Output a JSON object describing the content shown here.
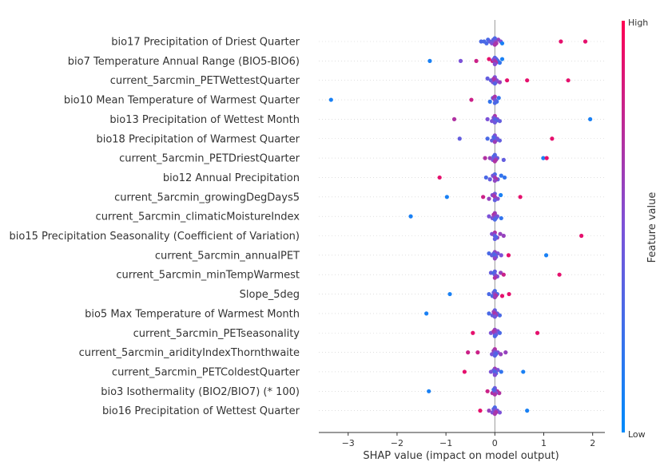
{
  "chart_data": {
    "type": "scatter",
    "subtype": "shap-beeswarm",
    "xlabel": "SHAP value (impact on model output)",
    "xlim": [
      -3.6,
      2.25
    ],
    "xticks": [
      -3,
      -2,
      -1,
      0,
      1,
      2
    ],
    "xtick_labels": [
      "−3",
      "−2",
      "−1",
      "0",
      "1",
      "2"
    ],
    "colorbar": {
      "label": "Feature value",
      "high": "High",
      "low": "Low",
      "low_color": "#008bfb",
      "high_color": "#ff0052"
    },
    "grid": false,
    "features": [
      {
        "name": "bio17 Precipitation of Driest Quarter",
        "points": [
          [
            -0.28,
            0.3
          ],
          [
            -0.22,
            0.3
          ],
          [
            -0.17,
            0.3
          ],
          [
            -0.14,
            0.3
          ],
          [
            -0.1,
            0.4
          ],
          [
            -0.06,
            0.5
          ],
          [
            -0.03,
            0.5
          ],
          [
            0,
            0.6
          ],
          [
            0.03,
            0.7
          ],
          [
            0.07,
            0.6
          ],
          [
            0.12,
            0.5
          ],
          [
            0.15,
            0.1
          ],
          [
            1.35,
            0.9
          ],
          [
            1.85,
            0.9
          ]
        ]
      },
      {
        "name": "bio7 Temperature Annual Range (BIO5-BIO6)",
        "points": [
          [
            -1.33,
            0.1
          ],
          [
            -0.7,
            0.5
          ],
          [
            -0.38,
            0.8
          ],
          [
            -0.12,
            0.9
          ],
          [
            -0.05,
            0.8
          ],
          [
            0,
            0.5
          ],
          [
            0.03,
            0.4
          ],
          [
            0.06,
            0.3
          ],
          [
            0.1,
            0.2
          ],
          [
            0.15,
            0.1
          ]
        ]
      },
      {
        "name": "current_5arcmin_PETWettestQuarter",
        "points": [
          [
            -0.15,
            0.4
          ],
          [
            -0.08,
            0.4
          ],
          [
            -0.04,
            0.5
          ],
          [
            0,
            0.5
          ],
          [
            0.04,
            0.5
          ],
          [
            0.1,
            0.6
          ],
          [
            0.25,
            0.9
          ],
          [
            0.66,
            0.9
          ],
          [
            1.5,
            0.9
          ]
        ]
      },
      {
        "name": "bio10 Mean Temperature of Warmest Quarter",
        "points": [
          [
            -3.35,
            0.1
          ],
          [
            -0.48,
            0.8
          ],
          [
            -0.1,
            0.2
          ],
          [
            -0.04,
            0.3
          ],
          [
            0,
            0.4
          ],
          [
            0.04,
            0.2
          ],
          [
            0.08,
            0.2
          ]
        ]
      },
      {
        "name": "bio13 Precipitation of Wettest Month",
        "points": [
          [
            -0.83,
            0.7
          ],
          [
            -0.15,
            0.5
          ],
          [
            -0.06,
            0.5
          ],
          [
            0,
            0.6
          ],
          [
            0.05,
            0.5
          ],
          [
            0.1,
            0.4
          ],
          [
            1.95,
            0.1
          ]
        ]
      },
      {
        "name": "bio18 Precipitation of Warmest Quarter",
        "points": [
          [
            -0.72,
            0.4
          ],
          [
            -0.15,
            0.3
          ],
          [
            -0.06,
            0.4
          ],
          [
            0,
            0.5
          ],
          [
            0.05,
            0.5
          ],
          [
            0.1,
            0.4
          ],
          [
            1.17,
            0.9
          ]
        ]
      },
      {
        "name": "current_5arcmin_PETDriestQuarter",
        "points": [
          [
            -0.2,
            0.7
          ],
          [
            -0.1,
            0.6
          ],
          [
            -0.04,
            0.5
          ],
          [
            0,
            0.5
          ],
          [
            0.05,
            0.4
          ],
          [
            0.18,
            0.4
          ],
          [
            0.99,
            0.1
          ],
          [
            1.06,
            0.9
          ]
        ]
      },
      {
        "name": "bio12 Annual Precipitation",
        "points": [
          [
            -1.13,
            0.9
          ],
          [
            -0.18,
            0.3
          ],
          [
            -0.1,
            0.4
          ],
          [
            -0.04,
            0.5
          ],
          [
            0,
            0.5
          ],
          [
            0.06,
            0.4
          ],
          [
            0.13,
            0.2
          ],
          [
            0.2,
            0.2
          ]
        ]
      },
      {
        "name": "current_5arcmin_growingDegDays5",
        "points": [
          [
            -0.98,
            0.1
          ],
          [
            -0.24,
            0.8
          ],
          [
            -0.12,
            0.6
          ],
          [
            -0.05,
            0.5
          ],
          [
            0,
            0.5
          ],
          [
            0.06,
            0.5
          ],
          [
            0.12,
            0.1
          ],
          [
            0.52,
            0.9
          ]
        ]
      },
      {
        "name": "current_5arcmin_climaticMoistureIndex",
        "points": [
          [
            -1.72,
            0.1
          ],
          [
            -0.12,
            0.5
          ],
          [
            -0.05,
            0.5
          ],
          [
            0,
            0.5
          ],
          [
            0.05,
            0.5
          ],
          [
            0.13,
            0.2
          ]
        ]
      },
      {
        "name": "bio15 Precipitation Seasonality (Coefficient of Variation)",
        "points": [
          [
            -0.06,
            0.5
          ],
          [
            0,
            0.6
          ],
          [
            0.05,
            0.6
          ],
          [
            0.11,
            0.6
          ],
          [
            0.18,
            0.6
          ],
          [
            1.77,
            0.9
          ]
        ]
      },
      {
        "name": "current_5arcmin_annualPET",
        "points": [
          [
            -0.12,
            0.3
          ],
          [
            -0.06,
            0.4
          ],
          [
            0,
            0.5
          ],
          [
            0.06,
            0.5
          ],
          [
            0.13,
            0.5
          ],
          [
            0.28,
            0.9
          ],
          [
            1.05,
            0.1
          ]
        ]
      },
      {
        "name": "current_5arcmin_minTempWarmest",
        "points": [
          [
            -0.08,
            0.4
          ],
          [
            0,
            0.5
          ],
          [
            0.05,
            0.5
          ],
          [
            0.12,
            0.6
          ],
          [
            0.18,
            0.8
          ],
          [
            1.32,
            0.9
          ]
        ]
      },
      {
        "name": "Slope_5deg",
        "points": [
          [
            -0.92,
            0.1
          ],
          [
            -0.12,
            0.3
          ],
          [
            -0.05,
            0.3
          ],
          [
            0,
            0.4
          ],
          [
            0.05,
            0.3
          ],
          [
            0.15,
            0.9
          ],
          [
            0.29,
            0.9
          ]
        ]
      },
      {
        "name": "bio5 Max Temperature of Warmest Month",
        "points": [
          [
            -1.4,
            0.1
          ],
          [
            -0.12,
            0.3
          ],
          [
            -0.05,
            0.4
          ],
          [
            0,
            0.4
          ],
          [
            0.05,
            0.4
          ],
          [
            0.1,
            0.3
          ]
        ]
      },
      {
        "name": "current_5arcmin_PETseasonality",
        "points": [
          [
            -0.45,
            0.9
          ],
          [
            -0.08,
            0.5
          ],
          [
            0,
            0.5
          ],
          [
            0.06,
            0.5
          ],
          [
            0.1,
            0.3
          ],
          [
            0.87,
            0.9
          ]
        ]
      },
      {
        "name": "current_5arcmin_aridityIndexThornthwaite",
        "points": [
          [
            -0.55,
            0.8
          ],
          [
            -0.35,
            0.8
          ],
          [
            -0.06,
            0.5
          ],
          [
            0,
            0.5
          ],
          [
            0.06,
            0.5
          ],
          [
            0.12,
            0.6
          ],
          [
            0.22,
            0.6
          ]
        ]
      },
      {
        "name": "current_5arcmin_PETColdestQuarter",
        "points": [
          [
            -0.62,
            0.9
          ],
          [
            -0.08,
            0.5
          ],
          [
            0,
            0.5
          ],
          [
            0.06,
            0.5
          ],
          [
            0.13,
            0.2
          ],
          [
            0.58,
            0.1
          ]
        ]
      },
      {
        "name": "bio3 Isothermality (BIO2/BIO7) (* 100)",
        "points": [
          [
            -1.35,
            0.1
          ],
          [
            -0.15,
            0.8
          ],
          [
            -0.05,
            0.7
          ],
          [
            0,
            0.6
          ],
          [
            0.05,
            0.7
          ],
          [
            0.09,
            0.7
          ]
        ]
      },
      {
        "name": "bio16 Precipitation of Wettest Quarter",
        "points": [
          [
            -0.3,
            0.9
          ],
          [
            -0.12,
            0.6
          ],
          [
            -0.05,
            0.5
          ],
          [
            0,
            0.5
          ],
          [
            0.05,
            0.5
          ],
          [
            0.1,
            0.5
          ],
          [
            0.66,
            0.1
          ]
        ]
      }
    ]
  }
}
